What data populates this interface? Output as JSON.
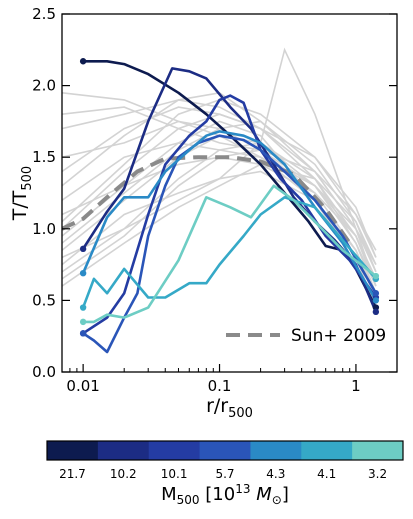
{
  "chart_data": {
    "type": "line",
    "xlabel": "r/r",
    "xlabel_sub": "500",
    "ylabel": "T/T",
    "ylabel_sub": "500",
    "x_scale": "log",
    "xlim": [
      0.007,
      2.0
    ],
    "ylim": [
      0.0,
      2.5
    ],
    "x_ticks": [
      0.01,
      0.1,
      1
    ],
    "x_tick_labels": [
      "0.01",
      "0.1",
      "1"
    ],
    "y_ticks": [
      0.0,
      0.5,
      1.0,
      1.5,
      2.0,
      2.5
    ],
    "y_tick_labels": [
      "0.0",
      "0.5",
      "1.0",
      "1.5",
      "2.0",
      "2.5"
    ],
    "legend": {
      "position": "bottom-right",
      "entries": [
        "Sun+ 2009"
      ]
    },
    "reference": {
      "name": "Sun+ 2009",
      "color": "#8a8a8a",
      "style": "dashed",
      "x": [
        0.007,
        0.01,
        0.015,
        0.025,
        0.04,
        0.07,
        0.12,
        0.2,
        0.35,
        0.6,
        0.9
      ],
      "y": [
        1.0,
        1.07,
        1.22,
        1.4,
        1.49,
        1.5,
        1.5,
        1.47,
        1.38,
        1.14,
        0.9
      ]
    },
    "background": {
      "color": "#d3d3d3",
      "description_note": "",
      "curves": [
        {
          "x": [
            0.007,
            0.02,
            0.05,
            0.1,
            0.2,
            0.5,
            1.0,
            1.4
          ],
          "y": [
            0.7,
            1.0,
            1.35,
            1.55,
            1.6,
            1.35,
            0.95,
            0.6
          ]
        },
        {
          "x": [
            0.007,
            0.02,
            0.05,
            0.1,
            0.2,
            0.5,
            1.0,
            1.4
          ],
          "y": [
            0.85,
            1.2,
            1.5,
            1.65,
            1.6,
            1.3,
            0.9,
            0.55
          ]
        },
        {
          "x": [
            0.007,
            0.02,
            0.05,
            0.1,
            0.2,
            0.5,
            1.0,
            1.4
          ],
          "y": [
            1.0,
            1.4,
            1.7,
            1.8,
            1.7,
            1.4,
            1.0,
            0.7
          ]
        },
        {
          "x": [
            0.007,
            0.02,
            0.05,
            0.1,
            0.2,
            0.5,
            1.0,
            1.4
          ],
          "y": [
            1.3,
            1.65,
            1.9,
            1.95,
            1.75,
            1.4,
            1.0,
            0.6
          ]
        },
        {
          "x": [
            0.007,
            0.02,
            0.05,
            0.1,
            0.2,
            0.5,
            1.0,
            1.4
          ],
          "y": [
            1.8,
            1.85,
            1.7,
            1.6,
            1.55,
            1.3,
            0.95,
            0.6
          ]
        },
        {
          "x": [
            0.007,
            0.02,
            0.05,
            0.1,
            0.2,
            0.5,
            1.0,
            1.4
          ],
          "y": [
            0.6,
            0.9,
            1.15,
            1.3,
            1.45,
            1.35,
            1.05,
            0.75
          ]
        },
        {
          "x": [
            0.007,
            0.02,
            0.05,
            0.1,
            0.2,
            0.5,
            1.0,
            1.4
          ],
          "y": [
            1.1,
            1.3,
            1.45,
            1.5,
            1.45,
            1.25,
            0.95,
            0.65
          ]
        },
        {
          "x": [
            0.007,
            0.02,
            0.05,
            0.1,
            0.2,
            0.5,
            1.0,
            1.4
          ],
          "y": [
            0.75,
            1.1,
            1.25,
            1.35,
            1.4,
            1.2,
            0.85,
            0.55
          ]
        },
        {
          "x": [
            0.007,
            0.02,
            0.05,
            0.1,
            0.2,
            0.5,
            1.0,
            1.4
          ],
          "y": [
            1.5,
            1.6,
            1.75,
            1.7,
            1.55,
            1.25,
            0.85,
            0.5
          ]
        },
        {
          "x": [
            0.007,
            0.02,
            0.05,
            0.1,
            0.2,
            0.5,
            1.0,
            1.4
          ],
          "y": [
            0.9,
            1.25,
            1.55,
            1.7,
            1.75,
            1.45,
            1.05,
            0.7
          ]
        },
        {
          "x": [
            0.007,
            0.02,
            0.05,
            0.1,
            0.2,
            0.3,
            0.5,
            1.0
          ],
          "y": [
            0.8,
            1.0,
            1.2,
            1.35,
            1.6,
            2.25,
            1.8,
            1.0
          ]
        },
        {
          "x": [
            0.007,
            0.02,
            0.05,
            0.1,
            0.2,
            0.5,
            1.0,
            1.4
          ],
          "y": [
            1.95,
            1.9,
            1.75,
            1.65,
            1.5,
            1.2,
            0.8,
            0.45
          ]
        },
        {
          "x": [
            0.007,
            0.02,
            0.05,
            0.1,
            0.2,
            0.5,
            1.0,
            1.4
          ],
          "y": [
            1.2,
            1.5,
            1.6,
            1.55,
            1.5,
            1.3,
            1.0,
            0.75
          ]
        },
        {
          "x": [
            0.007,
            0.02,
            0.05,
            0.1,
            0.2,
            0.5,
            1.0,
            1.4
          ],
          "y": [
            0.95,
            1.3,
            1.6,
            1.75,
            1.65,
            1.2,
            0.75,
            0.5
          ]
        },
        {
          "x": [
            0.007,
            0.02,
            0.05,
            0.1,
            0.2,
            0.5,
            1.0,
            1.4
          ],
          "y": [
            1.4,
            1.7,
            1.85,
            1.8,
            1.7,
            1.5,
            1.1,
            0.8
          ]
        },
        {
          "x": [
            0.007,
            0.02,
            0.05,
            0.1,
            0.2,
            0.5,
            1.0,
            1.4
          ],
          "y": [
            0.65,
            0.95,
            1.3,
            1.5,
            1.55,
            1.4,
            1.1,
            0.85
          ]
        },
        {
          "x": [
            0.007,
            0.02,
            0.05,
            0.1,
            0.2,
            0.5,
            1.0,
            1.4
          ],
          "y": [
            1.05,
            1.45,
            1.8,
            1.9,
            1.8,
            1.5,
            1.15,
            0.8
          ]
        },
        {
          "x": [
            0.007,
            0.02,
            0.05,
            0.1,
            0.2,
            0.5,
            1.0,
            1.4
          ],
          "y": [
            1.7,
            1.8,
            1.9,
            1.85,
            1.7,
            1.35,
            0.9,
            0.6
          ]
        }
      ]
    },
    "series": [
      {
        "color": "#0d1b4f",
        "x": [
          0.01,
          0.015,
          0.02,
          0.03,
          0.05,
          0.08,
          0.12,
          0.2,
          0.3,
          0.45,
          0.6,
          0.8,
          1.0,
          1.4
        ],
        "y": [
          2.17,
          2.17,
          2.15,
          2.08,
          1.95,
          1.8,
          1.65,
          1.45,
          1.25,
          1.05,
          0.88,
          0.85,
          0.72,
          0.45
        ]
      },
      {
        "color": "#1c2c84",
        "x": [
          0.01,
          0.015,
          0.02,
          0.03,
          0.045,
          0.06,
          0.08,
          0.12,
          0.17,
          0.25,
          0.35,
          0.5,
          0.7,
          1.0,
          1.4
        ],
        "y": [
          0.86,
          1.12,
          1.28,
          1.75,
          2.12,
          2.1,
          2.05,
          1.85,
          1.7,
          1.45,
          1.22,
          1.05,
          0.92,
          0.75,
          0.42
        ]
      },
      {
        "color": "#243ca3",
        "x": [
          0.01,
          0.015,
          0.02,
          0.03,
          0.04,
          0.06,
          0.08,
          0.1,
          0.12,
          0.15,
          0.2,
          0.28,
          0.4,
          0.6,
          0.9,
          1.4
        ],
        "y": [
          0.27,
          0.38,
          0.55,
          1.1,
          1.45,
          1.65,
          1.75,
          1.9,
          1.93,
          1.88,
          1.55,
          1.35,
          1.2,
          0.95,
          0.78,
          0.52
        ]
      },
      {
        "color": "#2a55b8",
        "x": [
          0.01,
          0.012,
          0.015,
          0.02,
          0.025,
          0.03,
          0.04,
          0.05,
          0.07,
          0.1,
          0.15,
          0.2,
          0.3,
          0.5,
          0.8,
          1.4
        ],
        "y": [
          0.27,
          0.22,
          0.14,
          0.38,
          0.55,
          0.95,
          1.3,
          1.5,
          1.6,
          1.65,
          1.62,
          1.55,
          1.4,
          1.2,
          0.95,
          0.55
        ]
      },
      {
        "color": "#2a8ac6",
        "x": [
          0.01,
          0.015,
          0.02,
          0.03,
          0.04,
          0.06,
          0.08,
          0.1,
          0.15,
          0.2,
          0.3,
          0.5,
          0.8,
          1.4
        ],
        "y": [
          0.69,
          1.08,
          1.22,
          1.22,
          1.4,
          1.55,
          1.65,
          1.68,
          1.65,
          1.6,
          1.45,
          1.15,
          0.9,
          0.5
        ]
      },
      {
        "color": "#35a9c7",
        "x": [
          0.01,
          0.012,
          0.015,
          0.02,
          0.03,
          0.04,
          0.06,
          0.08,
          0.1,
          0.15,
          0.2,
          0.3,
          0.5,
          0.8,
          1.4
        ],
        "y": [
          0.45,
          0.65,
          0.55,
          0.72,
          0.52,
          0.52,
          0.62,
          0.62,
          0.75,
          0.95,
          1.1,
          1.22,
          1.15,
          0.92,
          0.65
        ]
      },
      {
        "color": "#6dcdc4",
        "x": [
          0.01,
          0.012,
          0.015,
          0.02,
          0.03,
          0.05,
          0.08,
          0.12,
          0.17,
          0.25,
          0.35,
          0.5,
          0.8,
          1.4
        ],
        "y": [
          0.35,
          0.35,
          0.4,
          0.38,
          0.45,
          0.78,
          1.22,
          1.15,
          1.08,
          1.3,
          1.2,
          1.05,
          0.85,
          0.67
        ]
      }
    ],
    "colorbar": {
      "colors": [
        "#0d1b4f",
        "#1c2c84",
        "#243ca3",
        "#2a55b8",
        "#2a8ac6",
        "#35a9c7",
        "#6dcdc4"
      ],
      "labels": [
        "21.7",
        "10.2",
        "10.1",
        "5.7",
        "4.3",
        "4.1",
        "3.2"
      ],
      "title_main": "M",
      "title_sub": "500",
      "title_rest": " [10",
      "title_sup": "13",
      "title_unit": " M",
      "title_unit_sub": "⊙",
      "title_end": "]"
    }
  }
}
